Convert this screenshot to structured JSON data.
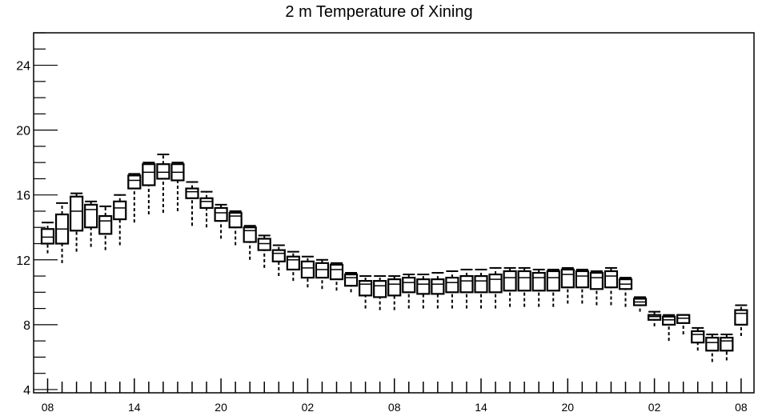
{
  "chart_data": {
    "type": "box",
    "title": "2 m Temperature of Xining",
    "xlabel": "",
    "ylabel": "",
    "ylim": [
      3.8,
      26
    ],
    "y_ticks": [
      4,
      8,
      12,
      16,
      20,
      24
    ],
    "x_tick_labels": [
      "08",
      "14",
      "20",
      "02",
      "08",
      "14",
      "20",
      "02",
      "08"
    ],
    "x_tick_label_positions": [
      0,
      6,
      12,
      18,
      24,
      30,
      36,
      42,
      48
    ],
    "x_step_hours": 1,
    "box_color": "#000000",
    "grid": false,
    "boxes": [
      {
        "x": 0,
        "whisker_low": 12.4,
        "q1": 13.0,
        "median": 13.4,
        "q3": 13.9,
        "whisker_high": 14.3
      },
      {
        "x": 1,
        "whisker_low": 11.8,
        "q1": 13.0,
        "median": 13.9,
        "q3": 14.8,
        "whisker_high": 15.5
      },
      {
        "x": 2,
        "whisker_low": 12.5,
        "q1": 13.8,
        "median": 15.0,
        "q3": 15.9,
        "whisker_high": 16.1
      },
      {
        "x": 3,
        "whisker_low": 12.8,
        "q1": 14.0,
        "median": 15.1,
        "q3": 15.4,
        "whisker_high": 15.6
      },
      {
        "x": 4,
        "whisker_low": 12.6,
        "q1": 13.6,
        "median": 14.4,
        "q3": 14.7,
        "whisker_high": 15.3
      },
      {
        "x": 5,
        "whisker_low": 12.9,
        "q1": 14.5,
        "median": 15.2,
        "q3": 15.6,
        "whisker_high": 16.0
      },
      {
        "x": 6,
        "whisker_low": 14.3,
        "q1": 16.4,
        "median": 16.9,
        "q3": 17.2,
        "whisker_high": 17.3
      },
      {
        "x": 7,
        "whisker_low": 14.8,
        "q1": 16.6,
        "median": 17.4,
        "q3": 17.9,
        "whisker_high": 18.0
      },
      {
        "x": 8,
        "whisker_low": 14.9,
        "q1": 17.0,
        "median": 17.4,
        "q3": 17.9,
        "whisker_high": 18.5
      },
      {
        "x": 9,
        "whisker_low": 15.0,
        "q1": 16.9,
        "median": 17.4,
        "q3": 17.9,
        "whisker_high": 18.0
      },
      {
        "x": 10,
        "whisker_low": 14.1,
        "q1": 15.8,
        "median": 16.2,
        "q3": 16.4,
        "whisker_high": 16.8
      },
      {
        "x": 11,
        "whisker_low": 14.0,
        "q1": 15.2,
        "median": 15.6,
        "q3": 15.8,
        "whisker_high": 16.2
      },
      {
        "x": 12,
        "whisker_low": 13.3,
        "q1": 14.4,
        "median": 14.9,
        "q3": 15.2,
        "whisker_high": 15.4
      },
      {
        "x": 13,
        "whisker_low": 12.9,
        "q1": 14.0,
        "median": 14.7,
        "q3": 14.9,
        "whisker_high": 15.0
      },
      {
        "x": 14,
        "whisker_low": 12.0,
        "q1": 13.1,
        "median": 13.8,
        "q3": 14.0,
        "whisker_high": 14.1
      },
      {
        "x": 15,
        "whisker_low": 11.5,
        "q1": 12.6,
        "median": 13.0,
        "q3": 13.3,
        "whisker_high": 13.5
      },
      {
        "x": 16,
        "whisker_low": 11.0,
        "q1": 11.9,
        "median": 12.4,
        "q3": 12.6,
        "whisker_high": 12.9
      },
      {
        "x": 17,
        "whisker_low": 10.7,
        "q1": 11.4,
        "median": 12.0,
        "q3": 12.2,
        "whisker_high": 12.5
      },
      {
        "x": 18,
        "whisker_low": 10.3,
        "q1": 10.9,
        "median": 11.5,
        "q3": 11.9,
        "whisker_high": 12.2
      },
      {
        "x": 19,
        "whisker_low": 10.2,
        "q1": 10.9,
        "median": 11.4,
        "q3": 11.8,
        "whisker_high": 12.0
      },
      {
        "x": 20,
        "whisker_low": 10.1,
        "q1": 10.8,
        "median": 11.4,
        "q3": 11.7,
        "whisker_high": 11.8
      },
      {
        "x": 21,
        "whisker_low": 10.0,
        "q1": 10.4,
        "median": 10.9,
        "q3": 11.1,
        "whisker_high": 11.2
      },
      {
        "x": 22,
        "whisker_low": 9.0,
        "q1": 9.8,
        "median": 10.5,
        "q3": 10.7,
        "whisker_high": 11.0
      },
      {
        "x": 23,
        "whisker_low": 8.9,
        "q1": 9.7,
        "median": 10.4,
        "q3": 10.7,
        "whisker_high": 11.0
      },
      {
        "x": 24,
        "whisker_low": 8.9,
        "q1": 9.8,
        "median": 10.5,
        "q3": 10.8,
        "whisker_high": 11.0
      },
      {
        "x": 25,
        "whisker_low": 9.0,
        "q1": 10.0,
        "median": 10.6,
        "q3": 10.9,
        "whisker_high": 11.1
      },
      {
        "x": 26,
        "whisker_low": 9.0,
        "q1": 9.9,
        "median": 10.5,
        "q3": 10.8,
        "whisker_high": 11.1
      },
      {
        "x": 27,
        "whisker_low": 9.0,
        "q1": 9.9,
        "median": 10.5,
        "q3": 10.8,
        "whisker_high": 11.2
      },
      {
        "x": 28,
        "whisker_low": 9.0,
        "q1": 10.0,
        "median": 10.6,
        "q3": 10.9,
        "whisker_high": 11.3
      },
      {
        "x": 29,
        "whisker_low": 9.0,
        "q1": 10.0,
        "median": 10.7,
        "q3": 11.0,
        "whisker_high": 11.4
      },
      {
        "x": 30,
        "whisker_low": 9.0,
        "q1": 10.0,
        "median": 10.7,
        "q3": 11.0,
        "whisker_high": 11.4
      },
      {
        "x": 31,
        "whisker_low": 9.0,
        "q1": 10.0,
        "median": 10.8,
        "q3": 11.1,
        "whisker_high": 11.5
      },
      {
        "x": 32,
        "whisker_low": 9.1,
        "q1": 10.1,
        "median": 10.9,
        "q3": 11.3,
        "whisker_high": 11.5
      },
      {
        "x": 33,
        "whisker_low": 9.1,
        "q1": 10.1,
        "median": 10.9,
        "q3": 11.3,
        "whisker_high": 11.5
      },
      {
        "x": 34,
        "whisker_low": 9.1,
        "q1": 10.1,
        "median": 10.9,
        "q3": 11.2,
        "whisker_high": 11.4
      },
      {
        "x": 35,
        "whisker_low": 9.1,
        "q1": 10.1,
        "median": 10.9,
        "q3": 11.3,
        "whisker_high": 11.4
      },
      {
        "x": 36,
        "whisker_low": 9.3,
        "q1": 10.3,
        "median": 11.1,
        "q3": 11.4,
        "whisker_high": 11.5
      },
      {
        "x": 37,
        "whisker_low": 9.3,
        "q1": 10.3,
        "median": 11.0,
        "q3": 11.3,
        "whisker_high": 11.4
      },
      {
        "x": 38,
        "whisker_low": 9.2,
        "q1": 10.2,
        "median": 10.9,
        "q3": 11.2,
        "whisker_high": 11.3
      },
      {
        "x": 39,
        "whisker_low": 9.2,
        "q1": 10.3,
        "median": 11.0,
        "q3": 11.3,
        "whisker_high": 11.5
      },
      {
        "x": 40,
        "whisker_low": 9.1,
        "q1": 10.2,
        "median": 10.5,
        "q3": 10.8,
        "whisker_high": 10.9
      },
      {
        "x": 41,
        "whisker_low": 8.8,
        "q1": 9.2,
        "median": 9.4,
        "q3": 9.6,
        "whisker_high": 9.7
      },
      {
        "x": 42,
        "whisker_low": 7.9,
        "q1": 8.3,
        "median": 8.5,
        "q3": 8.6,
        "whisker_high": 8.8
      },
      {
        "x": 43,
        "whisker_low": 7.0,
        "q1": 8.0,
        "median": 8.3,
        "q3": 8.5,
        "whisker_high": 8.6
      },
      {
        "x": 44,
        "whisker_low": 7.4,
        "q1": 8.1,
        "median": 8.4,
        "q3": 8.6,
        "whisker_high": 8.6
      },
      {
        "x": 45,
        "whisker_low": 6.4,
        "q1": 6.9,
        "median": 7.4,
        "q3": 7.6,
        "whisker_high": 7.8
      },
      {
        "x": 46,
        "whisker_low": 5.7,
        "q1": 6.4,
        "median": 6.9,
        "q3": 7.2,
        "whisker_high": 7.4
      },
      {
        "x": 47,
        "whisker_low": 5.8,
        "q1": 6.4,
        "median": 7.0,
        "q3": 7.2,
        "whisker_high": 7.4
      },
      {
        "x": 48,
        "whisker_low": 7.3,
        "q1": 8.0,
        "median": 8.7,
        "q3": 8.9,
        "whisker_high": 9.2
      }
    ]
  }
}
